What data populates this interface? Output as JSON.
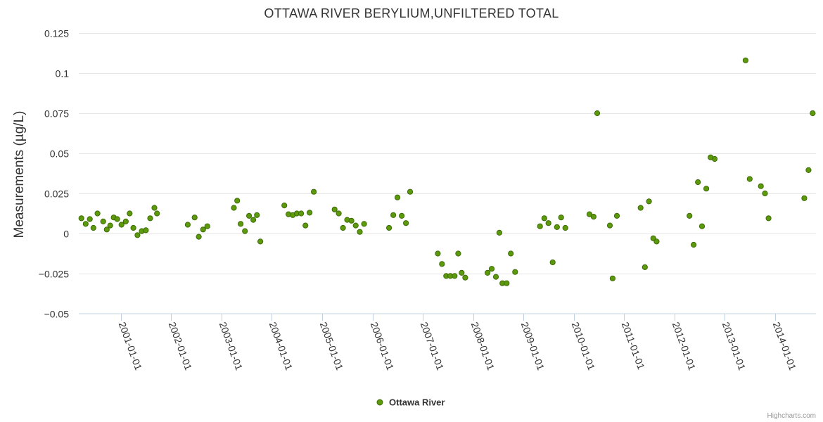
{
  "chart_data": {
    "type": "scatter",
    "title": "OTTAWA RIVER BERYLIUM,UNFILTERED TOTAL",
    "ylabel": "Measurements (µg/L)",
    "xlabel": "",
    "ylim": [
      -0.05,
      0.125
    ],
    "xlim": [
      "2000-03-01",
      "2014-10-25"
    ],
    "y_ticks": [
      -0.05,
      -0.025,
      0,
      0.025,
      0.05,
      0.075,
      0.1,
      0.125
    ],
    "y_tick_labels": [
      "−0.05",
      "−0.025",
      "0",
      "0.025",
      "0.05",
      "0.075",
      "0.1",
      "0.125"
    ],
    "x_ticks": [
      "2001-01-01",
      "2002-01-01",
      "2003-01-01",
      "2004-01-01",
      "2005-01-01",
      "2006-01-01",
      "2007-01-01",
      "2008-01-01",
      "2009-01-01",
      "2010-01-01",
      "2011-01-01",
      "2012-01-01",
      "2013-01-01",
      "2014-01-01"
    ],
    "grid": "horizontal",
    "legend_position": "bottom-center",
    "marker_fill": "#5c9a0c",
    "marker_stroke": "#3d6b06",
    "series": [
      {
        "name": "Ottawa River",
        "points": [
          [
            "2000-03-20",
            0.0095
          ],
          [
            "2000-04-20",
            0.006
          ],
          [
            "2000-05-20",
            0.009
          ],
          [
            "2000-06-15",
            0.0035
          ],
          [
            "2000-07-15",
            0.0125
          ],
          [
            "2000-08-25",
            0.0075
          ],
          [
            "2000-09-20",
            0.0025
          ],
          [
            "2000-10-15",
            0.005
          ],
          [
            "2000-11-10",
            0.01
          ],
          [
            "2000-12-05",
            0.009
          ],
          [
            "2001-01-05",
            0.0055
          ],
          [
            "2001-02-05",
            0.0075
          ],
          [
            "2001-03-05",
            0.0125
          ],
          [
            "2001-04-01",
            0.0035
          ],
          [
            "2001-05-01",
            -0.001
          ],
          [
            "2001-06-01",
            0.0015
          ],
          [
            "2001-07-01",
            0.002
          ],
          [
            "2001-08-01",
            0.0095
          ],
          [
            "2001-09-01",
            0.016
          ],
          [
            "2001-09-20",
            0.0125
          ],
          [
            "2002-05-01",
            0.0055
          ],
          [
            "2002-06-20",
            0.01
          ],
          [
            "2002-07-20",
            -0.002
          ],
          [
            "2002-08-20",
            0.0025
          ],
          [
            "2002-09-20",
            0.0045
          ],
          [
            "2003-04-01",
            0.016
          ],
          [
            "2003-04-25",
            0.0205
          ],
          [
            "2003-05-20",
            0.006
          ],
          [
            "2003-06-20",
            0.0015
          ],
          [
            "2003-07-20",
            0.011
          ],
          [
            "2003-08-20",
            0.0085
          ],
          [
            "2003-09-15",
            0.0115
          ],
          [
            "2003-10-10",
            -0.005
          ],
          [
            "2004-04-01",
            0.0175
          ],
          [
            "2004-05-01",
            0.012
          ],
          [
            "2004-06-01",
            0.0115
          ],
          [
            "2004-07-01",
            0.0125
          ],
          [
            "2004-08-01",
            0.0125
          ],
          [
            "2004-09-01",
            0.005
          ],
          [
            "2004-10-01",
            0.013
          ],
          [
            "2004-11-01",
            0.026
          ],
          [
            "2005-04-01",
            0.015
          ],
          [
            "2005-05-01",
            0.0125
          ],
          [
            "2005-06-01",
            0.0035
          ],
          [
            "2005-07-01",
            0.0085
          ],
          [
            "2005-08-01",
            0.008
          ],
          [
            "2005-09-01",
            0.005
          ],
          [
            "2005-10-01",
            0.001
          ],
          [
            "2005-11-01",
            0.006
          ],
          [
            "2006-05-01",
            0.0035
          ],
          [
            "2006-06-01",
            0.0115
          ],
          [
            "2006-07-01",
            0.0225
          ],
          [
            "2006-08-01",
            0.011
          ],
          [
            "2006-09-01",
            0.0065
          ],
          [
            "2006-10-01",
            0.026
          ],
          [
            "2007-04-20",
            -0.0125
          ],
          [
            "2007-05-20",
            -0.019
          ],
          [
            "2007-06-20",
            -0.0265
          ],
          [
            "2007-07-20",
            -0.0265
          ],
          [
            "2007-08-20",
            -0.0265
          ],
          [
            "2007-09-15",
            -0.0125
          ],
          [
            "2007-10-10",
            -0.0245
          ],
          [
            "2007-11-05",
            -0.0275
          ],
          [
            "2008-04-15",
            -0.0245
          ],
          [
            "2008-05-15",
            -0.022
          ],
          [
            "2008-06-15",
            -0.027
          ],
          [
            "2008-07-10",
            0.0005
          ],
          [
            "2008-08-01",
            -0.031
          ],
          [
            "2008-09-01",
            -0.031
          ],
          [
            "2008-10-01",
            -0.0125
          ],
          [
            "2008-11-01",
            -0.024
          ],
          [
            "2009-05-01",
            0.0045
          ],
          [
            "2009-06-01",
            0.0095
          ],
          [
            "2009-07-01",
            0.0065
          ],
          [
            "2009-08-01",
            -0.018
          ],
          [
            "2009-09-01",
            0.004
          ],
          [
            "2009-10-01",
            0.01
          ],
          [
            "2009-11-01",
            0.0035
          ],
          [
            "2010-04-25",
            0.012
          ],
          [
            "2010-05-25",
            0.0105
          ],
          [
            "2010-06-20",
            0.075
          ],
          [
            "2010-09-20",
            0.005
          ],
          [
            "2010-10-10",
            -0.028
          ],
          [
            "2010-11-10",
            0.011
          ],
          [
            "2011-05-01",
            0.016
          ],
          [
            "2011-06-01",
            -0.021
          ],
          [
            "2011-07-01",
            0.02
          ],
          [
            "2011-08-01",
            -0.003
          ],
          [
            "2011-08-25",
            -0.005
          ],
          [
            "2012-04-20",
            0.011
          ],
          [
            "2012-05-20",
            -0.007
          ],
          [
            "2012-06-20",
            0.032
          ],
          [
            "2012-07-20",
            0.0045
          ],
          [
            "2012-08-20",
            0.028
          ],
          [
            "2012-09-20",
            0.0475
          ],
          [
            "2012-10-20",
            0.0465
          ],
          [
            "2013-06-01",
            0.108
          ],
          [
            "2013-07-01",
            0.034
          ],
          [
            "2013-09-20",
            0.0295
          ],
          [
            "2013-10-20",
            0.025
          ],
          [
            "2013-11-15",
            0.0095
          ],
          [
            "2014-08-01",
            0.022
          ],
          [
            "2014-09-01",
            0.0395
          ],
          [
            "2014-10-01",
            0.075
          ]
        ]
      }
    ]
  },
  "credit": "Highcharts.com"
}
